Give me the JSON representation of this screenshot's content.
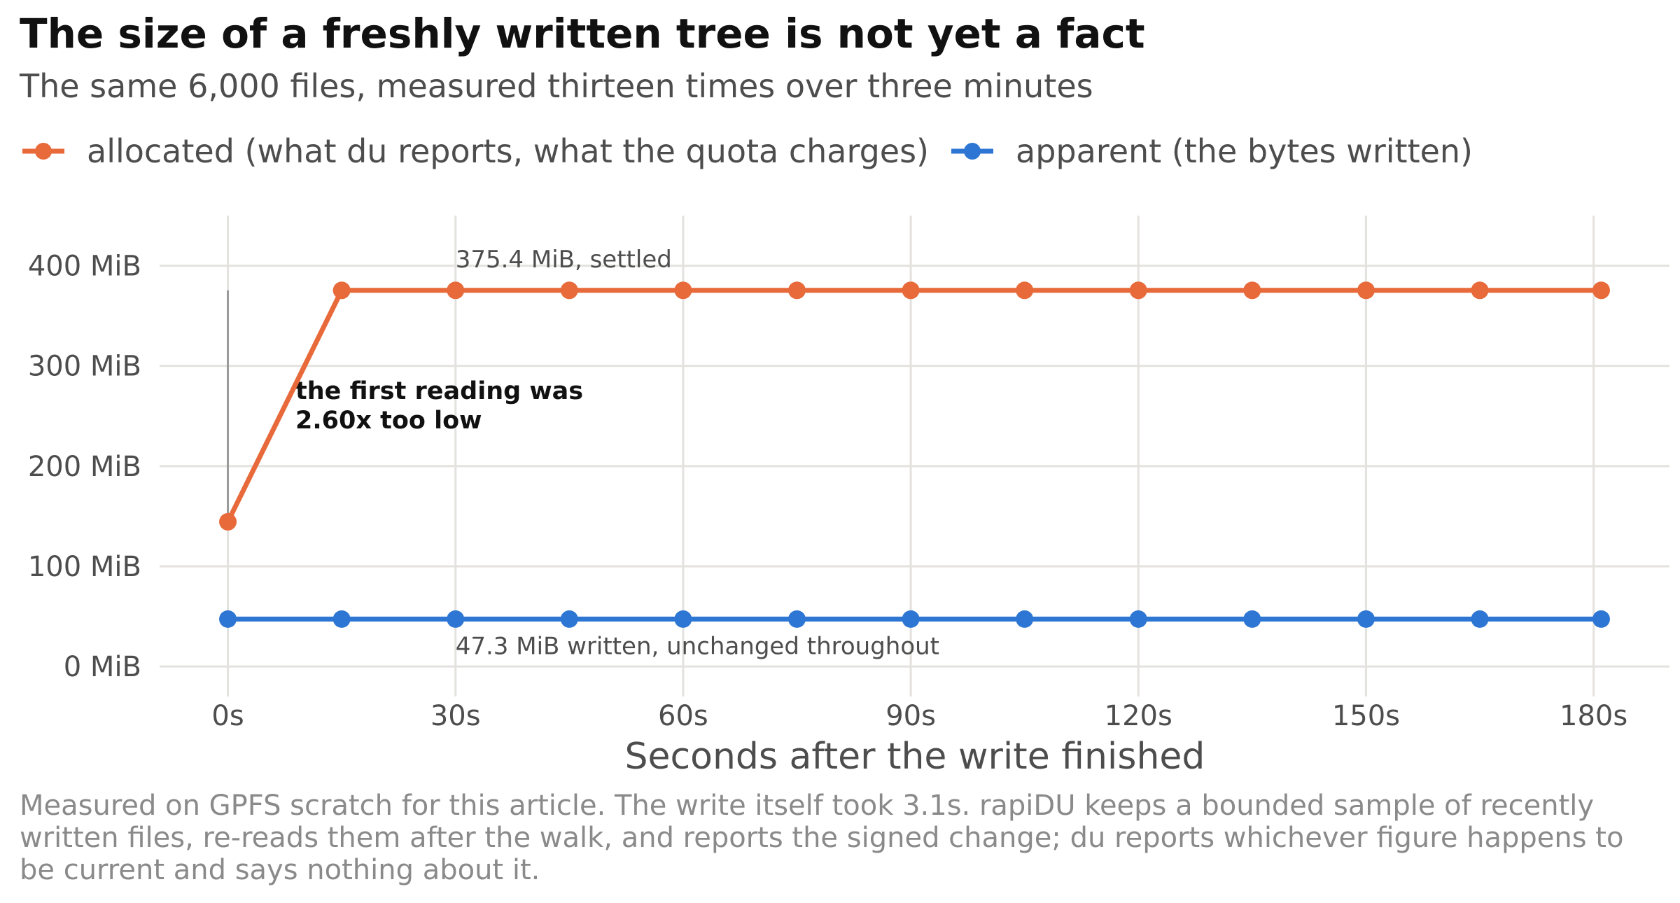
{
  "chart_data": {
    "type": "line",
    "title": "The size of a freshly written tree is not yet a fact",
    "subtitle": "The same 6,000 files, measured thirteen times over three minutes",
    "xlabel": "Seconds after the write finished",
    "ylabel": "",
    "x": [
      0,
      15,
      30,
      45,
      60,
      75,
      90,
      105,
      120,
      135,
      150,
      165,
      181
    ],
    "xlim": [
      -9,
      190
    ],
    "ylim": [
      -30,
      450
    ],
    "x_ticks": [
      0,
      30,
      60,
      90,
      120,
      150,
      180
    ],
    "x_tick_labels": [
      "0s",
      "30s",
      "60s",
      "90s",
      "120s",
      "150s",
      "180s"
    ],
    "y_ticks": [
      0,
      100,
      200,
      300,
      400
    ],
    "y_tick_labels": [
      "0 MiB",
      "100 MiB",
      "200 MiB",
      "300 MiB",
      "400 MiB"
    ],
    "grid": true,
    "legend_position": "top-left",
    "series": [
      {
        "name": "allocated (what du reports, what the quota charges)",
        "color": "#e8693a",
        "values": [
          144.4,
          375.4,
          375.4,
          375.4,
          375.4,
          375.4,
          375.4,
          375.4,
          375.4,
          375.4,
          375.4,
          375.4,
          375.4
        ]
      },
      {
        "name": "apparent (the bytes written)",
        "color": "#2e76d3",
        "values": [
          47.3,
          47.3,
          47.3,
          47.3,
          47.3,
          47.3,
          47.3,
          47.3,
          47.3,
          47.3,
          47.3,
          47.3,
          47.3
        ]
      }
    ],
    "annotations": {
      "settled": "375.4 MiB, settled",
      "written": "47.3 MiB written, unchanged throughout",
      "gap_line1": "the first reading was",
      "gap_line2": "2.60x too low",
      "gap_from": 144.4,
      "gap_to": 375.4
    },
    "caption": "Measured on GPFS scratch for this article. The write itself took 3.1s. rapiDU keeps a bounded sample of recently written files, re-reads them after the walk, and reports the signed change; du reports whichever figure happens to be current and says nothing about it."
  }
}
